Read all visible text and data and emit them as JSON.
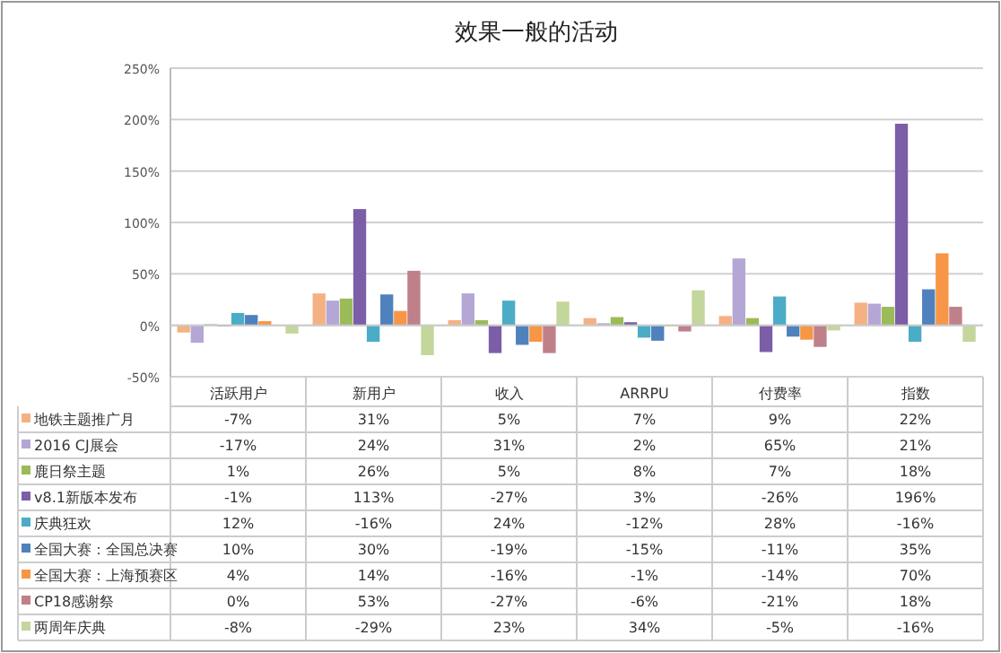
{
  "chart_data": {
    "type": "bar",
    "title": "效果一般的活动",
    "categories": [
      "活跃用户",
      "新用户",
      "收入",
      "ARRPU",
      "付费率",
      "指数"
    ],
    "series": [
      {
        "name": "地铁主题推广月",
        "color": "#f4b183",
        "values": [
          -7,
          31,
          5,
          7,
          9,
          22
        ],
        "value_labels": [
          "-7%",
          "31%",
          "5%",
          "7%",
          "9%",
          "22%"
        ]
      },
      {
        "name": "2016 CJ展会",
        "color": "#b4a7d6",
        "values": [
          -17,
          24,
          31,
          2,
          65,
          21
        ],
        "value_labels": [
          "-17%",
          "24%",
          "31%",
          "2%",
          "65%",
          "21%"
        ]
      },
      {
        "name": "鹿日祭主题",
        "color": "#9bbb59",
        "values": [
          1,
          26,
          5,
          8,
          7,
          18
        ],
        "value_labels": [
          "1%",
          "26%",
          "5%",
          "8%",
          "7%",
          "18%"
        ]
      },
      {
        "name": "v8.1新版本发布",
        "color": "#7b5ea7",
        "values": [
          -1,
          113,
          -27,
          3,
          -26,
          196
        ],
        "value_labels": [
          "-1%",
          "113%",
          "-27%",
          "3%",
          "-26%",
          "196%"
        ]
      },
      {
        "name": "庆典狂欢",
        "color": "#4bacc6",
        "values": [
          12,
          -16,
          24,
          -12,
          28,
          -16
        ],
        "value_labels": [
          "12%",
          "-16%",
          "24%",
          "-12%",
          "28%",
          "-16%"
        ]
      },
      {
        "name": "全国大赛：全国总决赛",
        "color": "#4f81bd",
        "values": [
          10,
          30,
          -19,
          -15,
          -11,
          35
        ],
        "value_labels": [
          "10%",
          "30%",
          "-19%",
          "-15%",
          "-11%",
          "35%"
        ]
      },
      {
        "name": "全国大赛：上海预赛区",
        "color": "#f79646",
        "values": [
          4,
          14,
          -16,
          -1,
          -14,
          70
        ],
        "value_labels": [
          "4%",
          "14%",
          "-16%",
          "-1%",
          "-14%",
          "70%"
        ]
      },
      {
        "name": "CP18感谢祭",
        "color": "#c0808a",
        "values": [
          0,
          53,
          -27,
          -6,
          -21,
          18
        ],
        "value_labels": [
          "0%",
          "53%",
          "-27%",
          "-6%",
          "-21%",
          "18%"
        ]
      },
      {
        "name": "两周年庆典",
        "color": "#c3d69b",
        "values": [
          -8,
          -29,
          23,
          34,
          -5,
          -16
        ],
        "value_labels": [
          "-8%",
          "-29%",
          "23%",
          "34%",
          "-5%",
          "-16%"
        ]
      }
    ],
    "ylim": [
      -50,
      250
    ],
    "yticks": [
      {
        "value": -50,
        "label": "-50%"
      },
      {
        "value": 0,
        "label": "0%"
      },
      {
        "value": 50,
        "label": "50%"
      },
      {
        "value": 100,
        "label": "100%"
      },
      {
        "value": 150,
        "label": "150%"
      },
      {
        "value": 200,
        "label": "200%"
      },
      {
        "value": 250,
        "label": "250%"
      }
    ],
    "grid": "y",
    "legend": "bottom"
  }
}
